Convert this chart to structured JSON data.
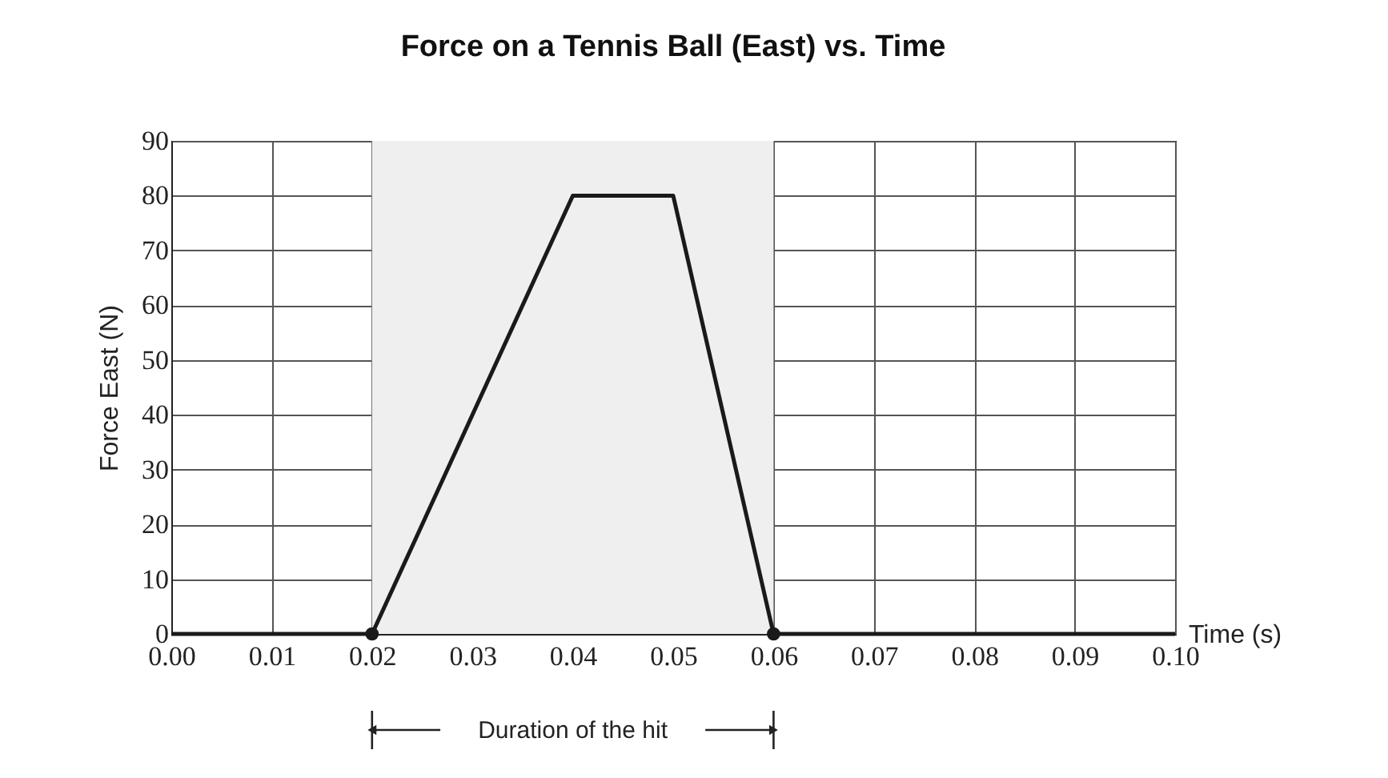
{
  "chart_data": {
    "type": "line",
    "title": "Force on a Tennis Ball (East) vs. Time",
    "xlabel": "Time (s)",
    "ylabel": "Force East  (N)",
    "series": [
      {
        "color": "#1a1a1a",
        "x": [
          0,
          0.02,
          0.04,
          0.05,
          0.06,
          0.1
        ],
        "values": [
          0,
          0,
          80,
          80,
          0,
          0
        ]
      },
      {
        "type": "scatter",
        "color": "#1a1a1a",
        "marker": "circle",
        "x": [
          0.02,
          0.06
        ],
        "values": [
          0,
          0
        ]
      }
    ],
    "xlim": [
      0,
      0.1
    ],
    "ylim": [
      0,
      90
    ],
    "xticks": [
      {
        "value": 0,
        "label": "0.00"
      },
      {
        "value": 0.01,
        "label": "0.01"
      },
      {
        "value": 0.02,
        "label": "0.02"
      },
      {
        "value": 0.03,
        "label": "0.03"
      },
      {
        "value": 0.04,
        "label": "0.04"
      },
      {
        "value": 0.05,
        "label": "0.05"
      },
      {
        "value": 0.06,
        "label": "0.06"
      },
      {
        "value": 0.07,
        "label": "0.07"
      },
      {
        "value": 0.08,
        "label": "0.08"
      },
      {
        "value": 0.09,
        "label": "0.09"
      },
      {
        "value": 0.1,
        "label": "0.10"
      }
    ],
    "yticks": [
      0,
      10,
      20,
      30,
      40,
      50,
      60,
      70,
      80,
      90
    ],
    "bands": [
      {
        "axis": "x",
        "from": 0.02,
        "to": 0.06,
        "color": "#efefef"
      }
    ],
    "annotations": [
      "Duration of the hit"
    ],
    "grid": true
  }
}
